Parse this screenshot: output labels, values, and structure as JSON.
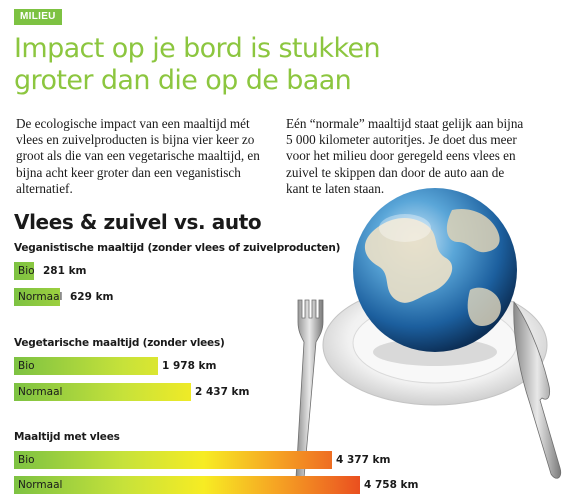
{
  "section_tag": "MILIEU",
  "headline": "Impact op je bord is stukken groter dan die op de baan",
  "paragraphs": [
    "De ecologische impact van een maaltijd mét vlees en zuivelproducten is bijna vier keer zo groot als die van een vegetarische maaltijd, en bijna acht keer groter dan een veganistisch alternatief.",
    "Eén “normale” maaltijd staat gelijk aan bijna 5 000 kilometer autoritjes. Je doet dus meer voor het milieu door geregeld eens vlees en zuivel te skippen dan door de auto aan de kant te laten staan."
  ],
  "chart_data": {
    "type": "bar",
    "title": "Vlees & zuivel vs. auto",
    "unit": "km",
    "groups": [
      {
        "title": "Veganistische maaltijd (zonder vlees of zuivelproducten)",
        "bars": [
          {
            "label": "Bio",
            "value": 281,
            "value_label": "281 km"
          },
          {
            "label": "Normaal",
            "value": 629,
            "value_label": "629 km"
          }
        ]
      },
      {
        "title": "Vegetarische maaltijd (zonder vlees)",
        "bars": [
          {
            "label": "Bio",
            "value": 1978,
            "value_label": "1 978 km"
          },
          {
            "label": "Normaal",
            "value": 2437,
            "value_label": "2 437 km"
          }
        ]
      },
      {
        "title": "Maaltijd met vlees",
        "bars": [
          {
            "label": "Bio",
            "value": 4377,
            "value_label": "4 377 km"
          },
          {
            "label": "Normaal",
            "value": 4758,
            "value_label": "4 758 km"
          }
        ]
      }
    ]
  },
  "illustration": {
    "subject": "globe on a plate with fork and knife",
    "icon": "globe-plate-icon"
  },
  "colors": {
    "accent_green": "#8cc63f",
    "tag_green": "#7dc242",
    "bar_start": "#7dc242",
    "bar_end": "#e8401d"
  }
}
